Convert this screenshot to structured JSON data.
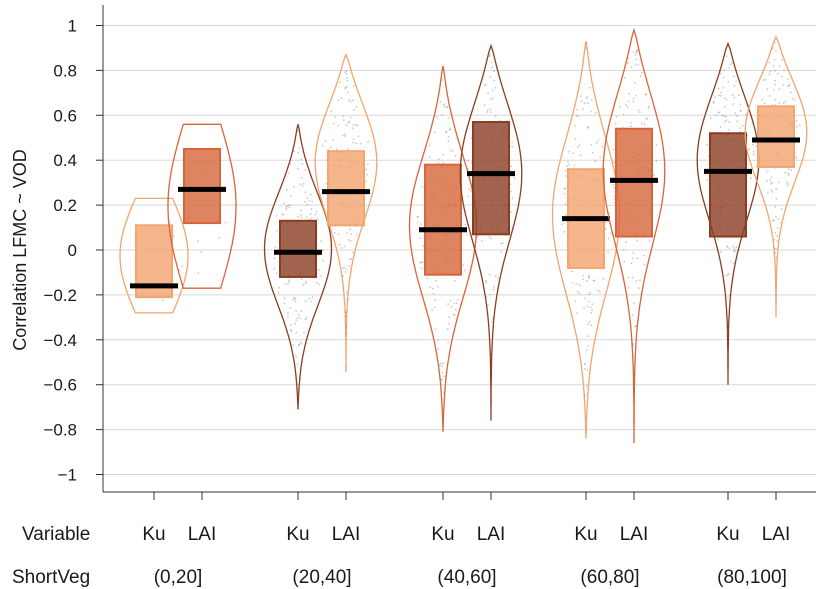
{
  "chart_data": {
    "type": "violin",
    "ylabel": "Correlation LFMC ~ VOD",
    "ylim": [
      -1.1,
      1.1
    ],
    "yticks": [
      -1,
      -0.8,
      -0.6,
      -0.4,
      -0.2,
      0,
      0.2,
      0.4,
      0.6,
      0.8,
      1
    ],
    "ytick_labels": [
      "−1",
      "−0.8",
      "−0.6",
      "−0.4",
      "−0.2",
      "0",
      "0.2",
      "0.4",
      "0.6",
      "0.8",
      "1"
    ],
    "grid": true,
    "row_labels": {
      "variable": "Variable",
      "group": "ShortVeg"
    },
    "groups": [
      {
        "label": "(0,20]",
        "violins": [
          {
            "variable": "Ku",
            "median": -0.16,
            "q1": -0.21,
            "q3": 0.11,
            "min": -0.28,
            "max": 0.23,
            "color": "#f4a46f",
            "shape": "flat"
          },
          {
            "variable": "LAI",
            "median": 0.27,
            "q1": 0.12,
            "q3": 0.45,
            "min": -0.17,
            "max": 0.56,
            "color": "#d7653a",
            "shape": "flat"
          }
        ]
      },
      {
        "label": "(20,40]",
        "violins": [
          {
            "variable": "Ku",
            "median": -0.01,
            "q1": -0.12,
            "q3": 0.13,
            "min": -0.71,
            "max": 0.56,
            "color": "#8b3d22",
            "shape": "mid"
          },
          {
            "variable": "LAI",
            "median": 0.26,
            "q1": 0.11,
            "q3": 0.44,
            "min": -0.54,
            "max": 0.87,
            "color": "#f4a46f",
            "shape": "upper"
          }
        ]
      },
      {
        "label": "(40,60]",
        "violins": [
          {
            "variable": "Ku",
            "median": 0.09,
            "q1": -0.11,
            "q3": 0.38,
            "min": -0.81,
            "max": 0.82,
            "color": "#d7653a",
            "shape": "mid"
          },
          {
            "variable": "LAI",
            "median": 0.34,
            "q1": 0.07,
            "q3": 0.57,
            "min": -0.76,
            "max": 0.91,
            "color": "#8b3d22",
            "shape": "upper"
          }
        ]
      },
      {
        "label": "(60,80]",
        "violins": [
          {
            "variable": "Ku",
            "median": 0.14,
            "q1": -0.08,
            "q3": 0.36,
            "min": -0.84,
            "max": 0.93,
            "color": "#f4a46f",
            "shape": "mid"
          },
          {
            "variable": "LAI",
            "median": 0.31,
            "q1": 0.06,
            "q3": 0.54,
            "min": -0.86,
            "max": 0.98,
            "color": "#d7653a",
            "shape": "upper"
          }
        ]
      },
      {
        "label": "(80,100]",
        "violins": [
          {
            "variable": "Ku",
            "median": 0.35,
            "q1": 0.06,
            "q3": 0.52,
            "min": -0.6,
            "max": 0.92,
            "color": "#8b3d22",
            "shape": "upper"
          },
          {
            "variable": "LAI",
            "median": 0.49,
            "q1": 0.37,
            "q3": 0.64,
            "min": -0.3,
            "max": 0.95,
            "color": "#f4a46f",
            "shape": "upper"
          }
        ]
      }
    ]
  }
}
